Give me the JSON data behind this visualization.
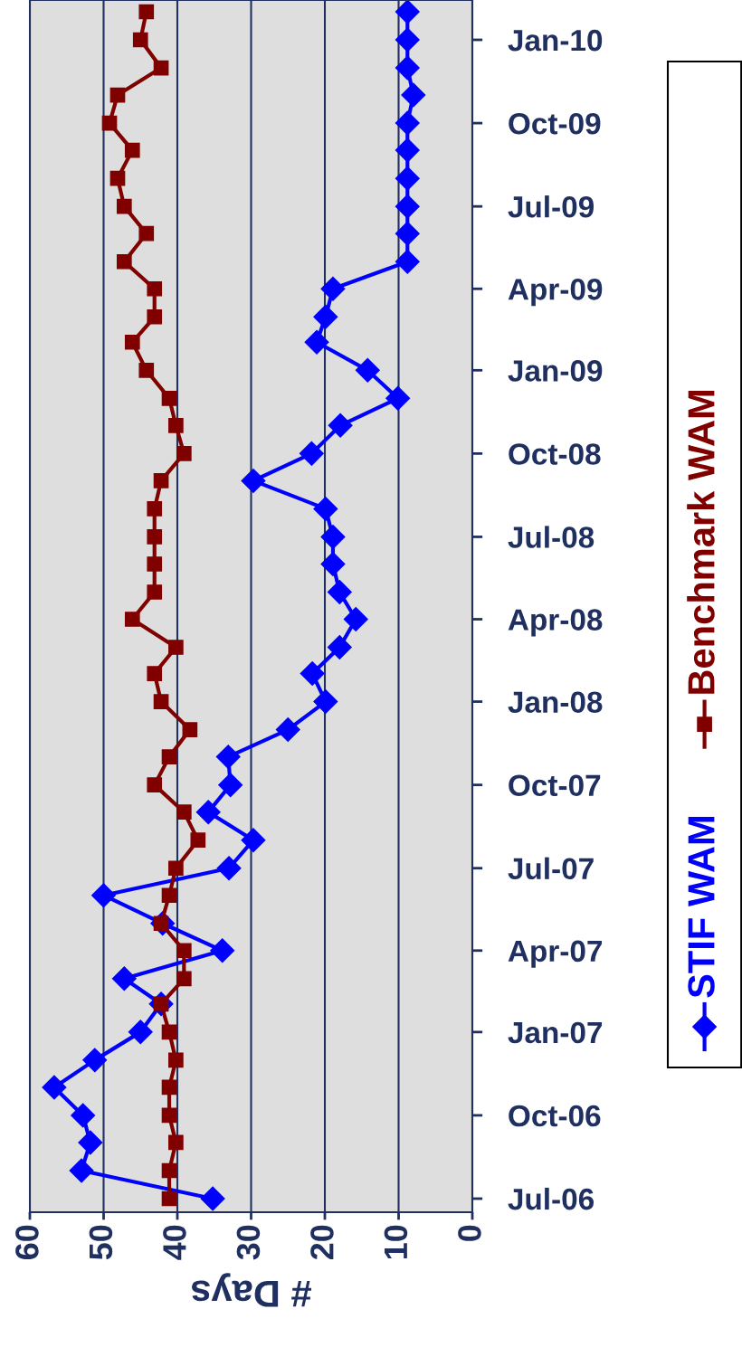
{
  "chart_data": {
    "type": "line",
    "orientation": "horizontal",
    "xlabel": "# Days",
    "x": [
      "2006-07",
      "2006-08",
      "2006-09",
      "2006-10",
      "2006-11",
      "2006-12",
      "2007-01",
      "2007-02",
      "2007-03",
      "2007-04",
      "2007-05",
      "2007-06",
      "2007-07",
      "2007-08",
      "2007-09",
      "2007-10",
      "2007-11",
      "2007-12",
      "2008-01",
      "2008-02",
      "2008-03",
      "2008-04",
      "2008-05",
      "2008-06",
      "2008-07",
      "2008-08",
      "2008-09",
      "2008-10",
      "2008-11",
      "2008-12",
      "2009-01",
      "2009-02",
      "2009-03",
      "2009-04",
      "2009-05",
      "2009-06",
      "2009-07",
      "2009-08",
      "2009-09",
      "2009-10",
      "2009-11",
      "2009-12",
      "2010-01",
      "2010-02"
    ],
    "series": [
      {
        "name": "STIF WAM",
        "color": "#0000ff",
        "marker": "diamond",
        "values": [
          35.2,
          53,
          51.8,
          52.8,
          56.7,
          51.2,
          45,
          42.2,
          47.2,
          33.9,
          42,
          50,
          33,
          29.7,
          35.8,
          32.8,
          33.1,
          25,
          19.9,
          21.7,
          18,
          15.8,
          18,
          18.9,
          18.9,
          19.9,
          29.7,
          21.8,
          17.9,
          10.1,
          14.2,
          21.1,
          19.9,
          18.9,
          8.8,
          8.8,
          8.8,
          8.8,
          8.8,
          8.8,
          8,
          8.8,
          8.8,
          8.8
        ]
      },
      {
        "name": "Benchmark WAM",
        "color": "#800000",
        "marker": "square",
        "values": [
          41.1,
          41.1,
          40.2,
          41.1,
          41.1,
          40.2,
          41.1,
          42.2,
          39.1,
          39.1,
          42.2,
          41.1,
          40.2,
          37.2,
          39.1,
          43.1,
          41.1,
          38.3,
          42.2,
          43.1,
          40.2,
          46.1,
          43.1,
          43.1,
          43.1,
          43.1,
          42.2,
          39.1,
          40.2,
          41.1,
          44.2,
          46.1,
          43.1,
          43.1,
          47.2,
          44.2,
          47.2,
          48.1,
          46.1,
          49.2,
          48.1,
          42.2,
          45,
          44.2
        ]
      }
    ],
    "ylim": [
      "2006-06-16",
      "2010-02-14"
    ],
    "yticks": [
      {
        "value": "2006-07-01",
        "label": "Jul-06"
      },
      {
        "value": "2006-10-01",
        "label": "Oct-06"
      },
      {
        "value": "2007-01-01",
        "label": "Jan-07"
      },
      {
        "value": "2007-04-01",
        "label": "Apr-07"
      },
      {
        "value": "2007-07-01",
        "label": "Jul-07"
      },
      {
        "value": "2007-10-01",
        "label": "Oct-07"
      },
      {
        "value": "2008-01-01",
        "label": "Jan-08"
      },
      {
        "value": "2008-04-01",
        "label": "Apr-08"
      },
      {
        "value": "2008-07-01",
        "label": "Jul-08"
      },
      {
        "value": "2008-10-01",
        "label": "Oct-08"
      },
      {
        "value": "2009-01-01",
        "label": "Jan-09"
      },
      {
        "value": "2009-04-01",
        "label": "Apr-09"
      },
      {
        "value": "2009-07-01",
        "label": "Jul-09"
      },
      {
        "value": "2009-10-01",
        "label": "Oct-09"
      },
      {
        "value": "2010-01-01",
        "label": "Jan-10"
      }
    ],
    "xlim": [
      60,
      0
    ],
    "xticks": [
      60,
      50,
      40,
      30,
      20,
      10,
      0
    ],
    "grid": "x",
    "legend": "right",
    "line_style": "solid"
  }
}
